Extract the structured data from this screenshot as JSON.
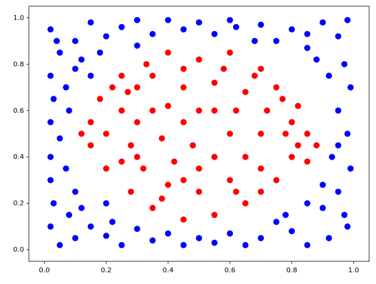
{
  "chart_data": {
    "type": "scatter",
    "xlim": [
      -0.05,
      1.05
    ],
    "ylim": [
      -0.05,
      1.05
    ],
    "xticks": [
      {
        "value": 0,
        "label": "0.0"
      },
      0.2,
      0.4,
      0.6,
      0.8,
      {
        "value": 1,
        "label": "1.0"
      }
    ],
    "yticks": [
      {
        "value": 0,
        "label": "0.0"
      },
      0.2,
      0.4,
      0.6,
      0.8,
      {
        "value": 1,
        "label": "1.0"
      }
    ],
    "grid": false,
    "series": [
      {
        "color": "#0000ff",
        "x": [
          0.02,
          0.05,
          0.1,
          0.15,
          0.2,
          0.25,
          0.3,
          0.35,
          0.45,
          0.5,
          0.55,
          0.62,
          0.7,
          0.75,
          0.8,
          0.85,
          0.9,
          0.95,
          0.98,
          0.97,
          0.92,
          0.99,
          0.95,
          0.98,
          0.93,
          0.99,
          0.95,
          0.9,
          0.98,
          0.92,
          0.85,
          0.8,
          0.75,
          0.7,
          0.65,
          0.6,
          0.55,
          0.5,
          0.45,
          0.4,
          0.35,
          0.3,
          0.25,
          0.2,
          0.15,
          0.1,
          0.05,
          0.02,
          0.08,
          0.03,
          0.1,
          0.02,
          0.07,
          0.02,
          0.05,
          0.02,
          0.08,
          0.03,
          0.07,
          0.02,
          0.1,
          0.12,
          0.18,
          0.15,
          0.88,
          0.9,
          0.85,
          0.2,
          0.12,
          0.22,
          0.78,
          0.3,
          0.68,
          0.85,
          0.95,
          0.97,
          0.04,
          0.6,
          0.4
        ],
        "y": [
          0.95,
          0.85,
          0.9,
          0.98,
          0.92,
          0.96,
          0.99,
          0.93,
          0.95,
          0.98,
          0.93,
          0.96,
          0.97,
          0.9,
          0.95,
          0.87,
          0.98,
          0.92,
          0.99,
          0.8,
          0.75,
          0.7,
          0.6,
          0.5,
          0.4,
          0.35,
          0.25,
          0.18,
          0.1,
          0.05,
          0.02,
          0.08,
          0.12,
          0.05,
          0.02,
          0.07,
          0.03,
          0.05,
          0.02,
          0.07,
          0.04,
          0.09,
          0.02,
          0.06,
          0.1,
          0.05,
          0.02,
          0.1,
          0.15,
          0.2,
          0.25,
          0.3,
          0.35,
          0.4,
          0.48,
          0.55,
          0.6,
          0.65,
          0.7,
          0.75,
          0.78,
          0.82,
          0.85,
          0.75,
          0.82,
          0.28,
          0.2,
          0.2,
          0.18,
          0.12,
          0.15,
          0.88,
          0.9,
          0.93,
          0.45,
          0.15,
          0.9,
          0.99,
          0.99
        ]
      },
      {
        "color": "#ff0000",
        "x": [
          0.3,
          0.25,
          0.4,
          0.5,
          0.6,
          0.7,
          0.75,
          0.82,
          0.85,
          0.8,
          0.75,
          0.65,
          0.55,
          0.45,
          0.35,
          0.28,
          0.2,
          0.15,
          0.15,
          0.18,
          0.22,
          0.35,
          0.45,
          0.55,
          0.65,
          0.72,
          0.7,
          0.65,
          0.6,
          0.5,
          0.4,
          0.32,
          0.28,
          0.3,
          0.38,
          0.45,
          0.55,
          0.6,
          0.55,
          0.48,
          0.42,
          0.35,
          0.25,
          0.2,
          0.25,
          0.38,
          0.5,
          0.62,
          0.7,
          0.78,
          0.8,
          0.77,
          0.68,
          0.58,
          0.45,
          0.33,
          0.27,
          0.12,
          0.5,
          0.62,
          0.4,
          0.3,
          0.7,
          0.82,
          0.45,
          0.85,
          0.88
        ],
        "y": [
          0.7,
          0.75,
          0.85,
          0.82,
          0.85,
          0.78,
          0.7,
          0.62,
          0.5,
          0.4,
          0.3,
          0.2,
          0.15,
          0.13,
          0.18,
          0.25,
          0.35,
          0.45,
          0.55,
          0.65,
          0.7,
          0.75,
          0.7,
          0.72,
          0.68,
          0.6,
          0.5,
          0.4,
          0.3,
          0.25,
          0.28,
          0.35,
          0.45,
          0.55,
          0.48,
          0.55,
          0.6,
          0.5,
          0.4,
          0.45,
          0.38,
          0.6,
          0.6,
          0.5,
          0.38,
          0.22,
          0.35,
          0.25,
          0.35,
          0.5,
          0.55,
          0.65,
          0.75,
          0.78,
          0.78,
          0.8,
          0.68,
          0.5,
          0.6,
          0.6,
          0.62,
          0.4,
          0.25,
          0.45,
          0.3,
          0.38,
          0.45
        ]
      }
    ]
  }
}
